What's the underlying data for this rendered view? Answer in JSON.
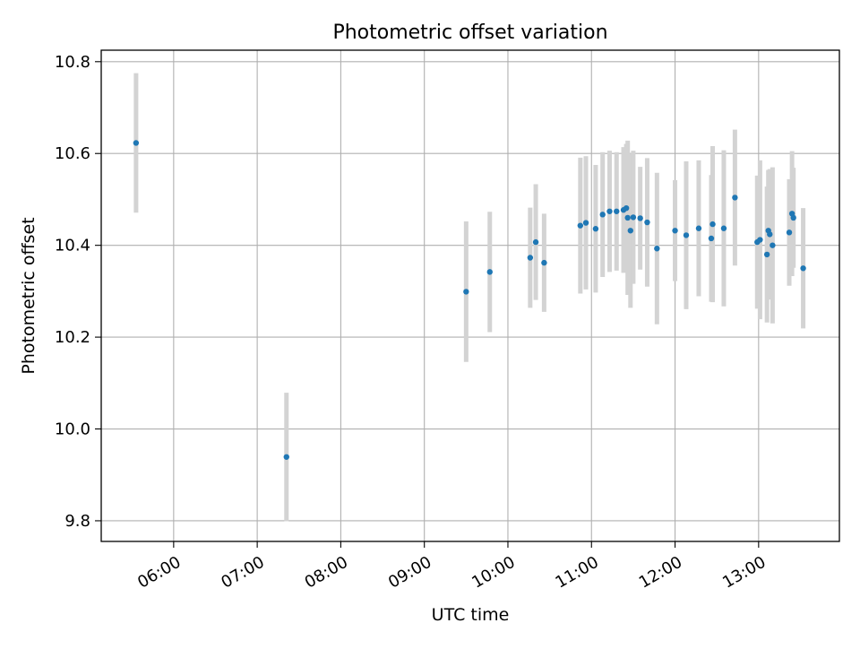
{
  "chart_data": {
    "type": "scatter",
    "title": "Photometric offset variation",
    "xlabel": "UTC time",
    "ylabel": "Photometric offset",
    "x_axis": {
      "kind": "time",
      "range": [
        "05:08",
        "13:58"
      ],
      "ticks": [
        "06:00",
        "07:00",
        "08:00",
        "09:00",
        "10:00",
        "11:00",
        "12:00",
        "13:00"
      ],
      "tick_rotation_deg": 30
    },
    "y_axis": {
      "range": [
        9.755,
        10.825
      ],
      "ticks": [
        9.8,
        10.0,
        10.2,
        10.4,
        10.6,
        10.8
      ],
      "tick_labels": [
        "9.8",
        "10.0",
        "10.2",
        "10.4",
        "10.6",
        "10.8"
      ]
    },
    "grid": true,
    "colors": {
      "marker": "#1f77b4",
      "errorbar": "#d3d3d3",
      "grid": "#b0b0b0"
    },
    "series": [
      {
        "points": [
          {
            "x": "05:33",
            "y": 10.623,
            "err": 0.152
          },
          {
            "x": "07:21",
            "y": 9.939,
            "err": 0.14
          },
          {
            "x": "09:30",
            "y": 10.299,
            "err": 0.153
          },
          {
            "x": "09:47",
            "y": 10.342,
            "err": 0.131
          },
          {
            "x": "10:16",
            "y": 10.373,
            "err": 0.109
          },
          {
            "x": "10:20",
            "y": 10.407,
            "err": 0.126
          },
          {
            "x": "10:26",
            "y": 10.362,
            "err": 0.107
          },
          {
            "x": "10:52",
            "y": 10.443,
            "err": 0.148
          },
          {
            "x": "10:56",
            "y": 10.449,
            "err": 0.145
          },
          {
            "x": "11:03",
            "y": 10.436,
            "err": 0.139
          },
          {
            "x": "11:08",
            "y": 10.467,
            "err": 0.136
          },
          {
            "x": "11:13",
            "y": 10.474,
            "err": 0.132
          },
          {
            "x": "11:18",
            "y": 10.474,
            "err": 0.129
          },
          {
            "x": "11:23",
            "y": 10.477,
            "err": 0.137
          },
          {
            "x": "11:25",
            "y": 10.481,
            "err": 0.14
          },
          {
            "x": "11:26",
            "y": 10.46,
            "err": 0.168
          },
          {
            "x": "11:28",
            "y": 10.432,
            "err": 0.168
          },
          {
            "x": "11:30",
            "y": 10.461,
            "err": 0.145
          },
          {
            "x": "11:35",
            "y": 10.459,
            "err": 0.112
          },
          {
            "x": "11:40",
            "y": 10.45,
            "err": 0.14
          },
          {
            "x": "11:47",
            "y": 10.393,
            "err": 0.165
          },
          {
            "x": "12:00",
            "y": 10.432,
            "err": 0.11
          },
          {
            "x": "12:08",
            "y": 10.422,
            "err": 0.161
          },
          {
            "x": "12:17",
            "y": 10.437,
            "err": 0.148
          },
          {
            "x": "12:26",
            "y": 10.415,
            "err": 0.138
          },
          {
            "x": "12:27",
            "y": 10.446,
            "err": 0.17
          },
          {
            "x": "12:35",
            "y": 10.437,
            "err": 0.17
          },
          {
            "x": "12:43",
            "y": 10.504,
            "err": 0.148
          },
          {
            "x": "12:59",
            "y": 10.407,
            "err": 0.145
          },
          {
            "x": "13:01",
            "y": 10.412,
            "err": 0.173
          },
          {
            "x": "13:06",
            "y": 10.38,
            "err": 0.148
          },
          {
            "x": "13:07",
            "y": 10.432,
            "err": 0.132
          },
          {
            "x": "13:08",
            "y": 10.424,
            "err": 0.142
          },
          {
            "x": "13:10",
            "y": 10.4,
            "err": 0.17
          },
          {
            "x": "13:22",
            "y": 10.428,
            "err": 0.116
          },
          {
            "x": "13:24",
            "y": 10.469,
            "err": 0.136
          },
          {
            "x": "13:25",
            "y": 10.46,
            "err": 0.109
          },
          {
            "x": "13:32",
            "y": 10.35,
            "err": 0.131
          }
        ]
      }
    ]
  }
}
